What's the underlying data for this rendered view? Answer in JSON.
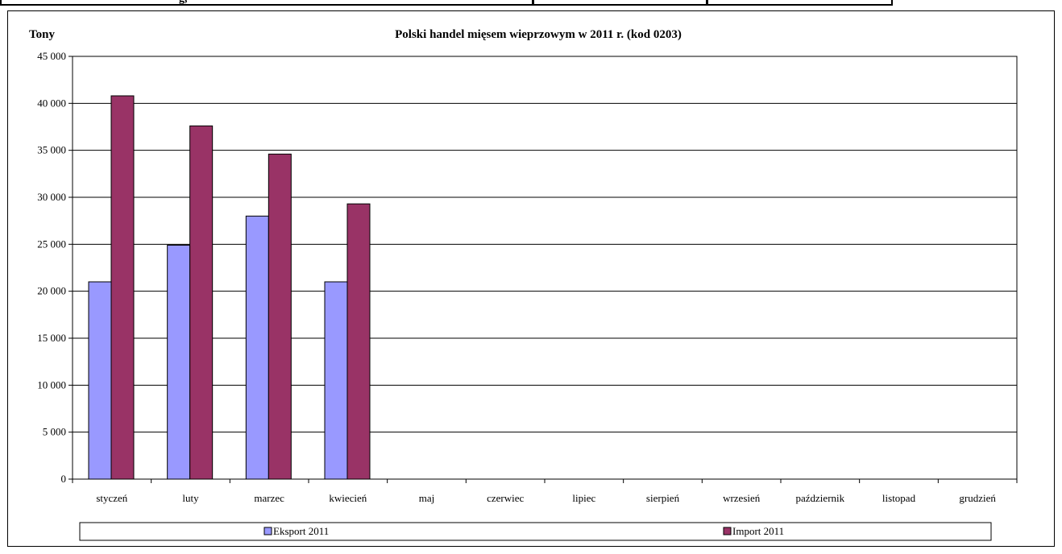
{
  "header_fragment": "g,",
  "chart_data": {
    "type": "bar",
    "title": "Polski handel mięsem wieprzowym w 2011 r. (kod 0203)",
    "ylabel": "Tony",
    "xlabel": "",
    "ylim": [
      0,
      45000
    ],
    "yticks": [
      0,
      5000,
      10000,
      15000,
      20000,
      25000,
      30000,
      35000,
      40000,
      45000
    ],
    "ytick_labels": [
      "0",
      "5 000",
      "10 000",
      "15 000",
      "20 000",
      "25 000",
      "30 000",
      "35 000",
      "40 000",
      "45 000"
    ],
    "categories": [
      "styczeń",
      "luty",
      "marzec",
      "kwiecień",
      "maj",
      "czerwiec",
      "lipiec",
      "sierpień",
      "wrzesień",
      "październik",
      "listopad",
      "grudzień"
    ],
    "series": [
      {
        "name": "Eksport 2011",
        "color": "#9999ff",
        "values": [
          21000,
          24900,
          28000,
          21000,
          null,
          null,
          null,
          null,
          null,
          null,
          null,
          null
        ]
      },
      {
        "name": "Import 2011",
        "color": "#993366",
        "values": [
          40800,
          37600,
          34600,
          29300,
          null,
          null,
          null,
          null,
          null,
          null,
          null,
          null
        ]
      }
    ],
    "grid": true,
    "legend": "bottom"
  }
}
